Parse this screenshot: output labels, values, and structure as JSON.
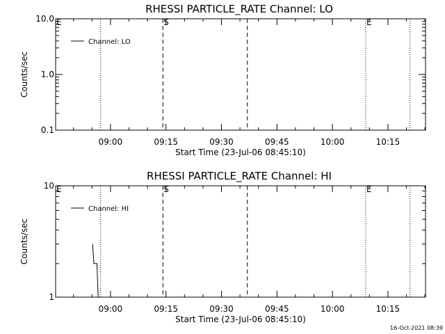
{
  "footer": {
    "timestamp": "16-Oct-2021 08:39"
  },
  "chart_data": [
    {
      "type": "line",
      "title": "RHESSI PARTICLE_RATE Channel: LO",
      "xlabel": "Start Time (23-Jul-06 08:45:10)",
      "ylabel": "Counts/sec",
      "yscale": "log",
      "ylim": [
        0.1,
        10.0
      ],
      "xlim": [
        "08:45:10",
        "10:25:10"
      ],
      "xticks": [
        "09:00",
        "09:15",
        "09:30",
        "09:45",
        "10:00",
        "10:15"
      ],
      "yticks": [
        {
          "value": 0.1,
          "label": "0.1"
        },
        {
          "value": 1.0,
          "label": "1.0"
        },
        {
          "value": 10.0,
          "label": "10.0"
        }
      ],
      "legend": {
        "label": "Channel: LO",
        "position": "top-left"
      },
      "markers": [
        {
          "time": "08:45:10",
          "label": "E",
          "style": "none"
        },
        {
          "time": "08:57:20",
          "label": "",
          "style": "dotted"
        },
        {
          "time": "09:14:10",
          "label": "S",
          "style": "dashed"
        },
        {
          "time": "09:37:00",
          "label": "",
          "style": "dashed"
        },
        {
          "time": "10:09:00",
          "label": "E",
          "style": "dotted"
        },
        {
          "time": "10:21:00",
          "label": "",
          "style": "dotted"
        }
      ],
      "series": [
        {
          "name": "Channel: LO",
          "points": []
        }
      ]
    },
    {
      "type": "line",
      "title": "RHESSI PARTICLE_RATE Channel: HI",
      "xlabel": "Start Time (23-Jul-06 08:45:10)",
      "ylabel": "Counts/sec",
      "yscale": "log",
      "ylim": [
        1,
        10
      ],
      "xlim": [
        "08:45:10",
        "10:25:10"
      ],
      "xticks": [
        "09:00",
        "09:15",
        "09:30",
        "09:45",
        "10:00",
        "10:15"
      ],
      "yticks": [
        {
          "value": 1,
          "label": "1"
        },
        {
          "value": 10,
          "label": "10"
        }
      ],
      "legend": {
        "label": "Channel: HI",
        "position": "top-left"
      },
      "markers": [
        {
          "time": "08:45:10",
          "label": "E",
          "style": "none"
        },
        {
          "time": "08:57:20",
          "label": "",
          "style": "dotted"
        },
        {
          "time": "09:14:10",
          "label": "S",
          "style": "dashed"
        },
        {
          "time": "09:37:00",
          "label": "",
          "style": "dashed"
        },
        {
          "time": "10:09:00",
          "label": "E",
          "style": "dotted"
        },
        {
          "time": "10:21:00",
          "label": "",
          "style": "dotted"
        }
      ],
      "series": [
        {
          "name": "Channel: HI",
          "points": [
            {
              "time": "08:55:10",
              "value": 3.0
            },
            {
              "time": "08:55:30",
              "value": 2.0
            },
            {
              "time": "08:56:20",
              "value": 2.0
            },
            {
              "time": "08:56:40",
              "value": 1.0
            }
          ]
        }
      ]
    }
  ]
}
